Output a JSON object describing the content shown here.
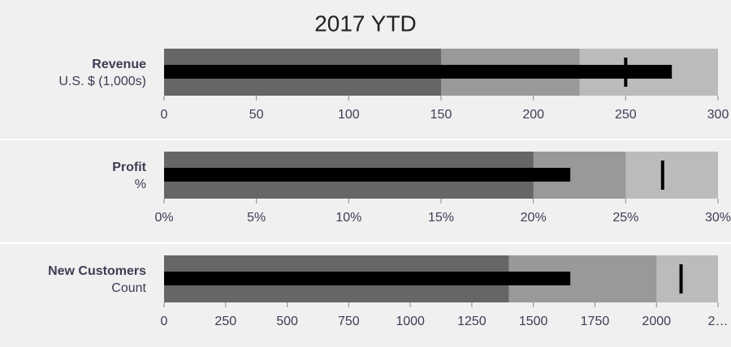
{
  "title": "2017 YTD",
  "chart_data": [
    {
      "type": "bullet",
      "title": "Revenue",
      "subtitle": "U.S. $ (1,000s)",
      "ranges": [
        150,
        225,
        300
      ],
      "range_colors": [
        "#666666",
        "#999999",
        "#bbbbbb"
      ],
      "value": 275,
      "target": 250,
      "color": "#000000",
      "xlim": [
        0,
        300
      ],
      "xticks": [
        0,
        50,
        100,
        150,
        200,
        250,
        300
      ]
    },
    {
      "type": "bullet",
      "title": "Profit",
      "subtitle": "%",
      "ranges": [
        20,
        25,
        30
      ],
      "range_colors": [
        "#666666",
        "#999999",
        "#bbbbbb"
      ],
      "value": 22,
      "target": 27,
      "color": "#000000",
      "xlim": [
        0,
        30
      ],
      "xticks": [
        {
          "value": 0,
          "label": "0%"
        },
        {
          "value": 5,
          "label": "5%"
        },
        {
          "value": 10,
          "label": "10%"
        },
        {
          "value": 15,
          "label": "15%"
        },
        {
          "value": 20,
          "label": "20%"
        },
        {
          "value": 25,
          "label": "25%"
        },
        {
          "value": 30,
          "label": "30%"
        }
      ]
    },
    {
      "type": "bullet",
      "title": "New Customers",
      "subtitle": "Count",
      "ranges": [
        1400,
        2000,
        2250
      ],
      "range_colors": [
        "#666666",
        "#999999",
        "#bbbbbb"
      ],
      "value": 1650,
      "target": 2100,
      "color": "#000000",
      "xlim": [
        0,
        2250
      ],
      "xticks": [
        0,
        250,
        500,
        750,
        1000,
        1250,
        1500,
        1750,
        2000,
        {
          "value": 2250,
          "label": "2…"
        }
      ]
    }
  ]
}
